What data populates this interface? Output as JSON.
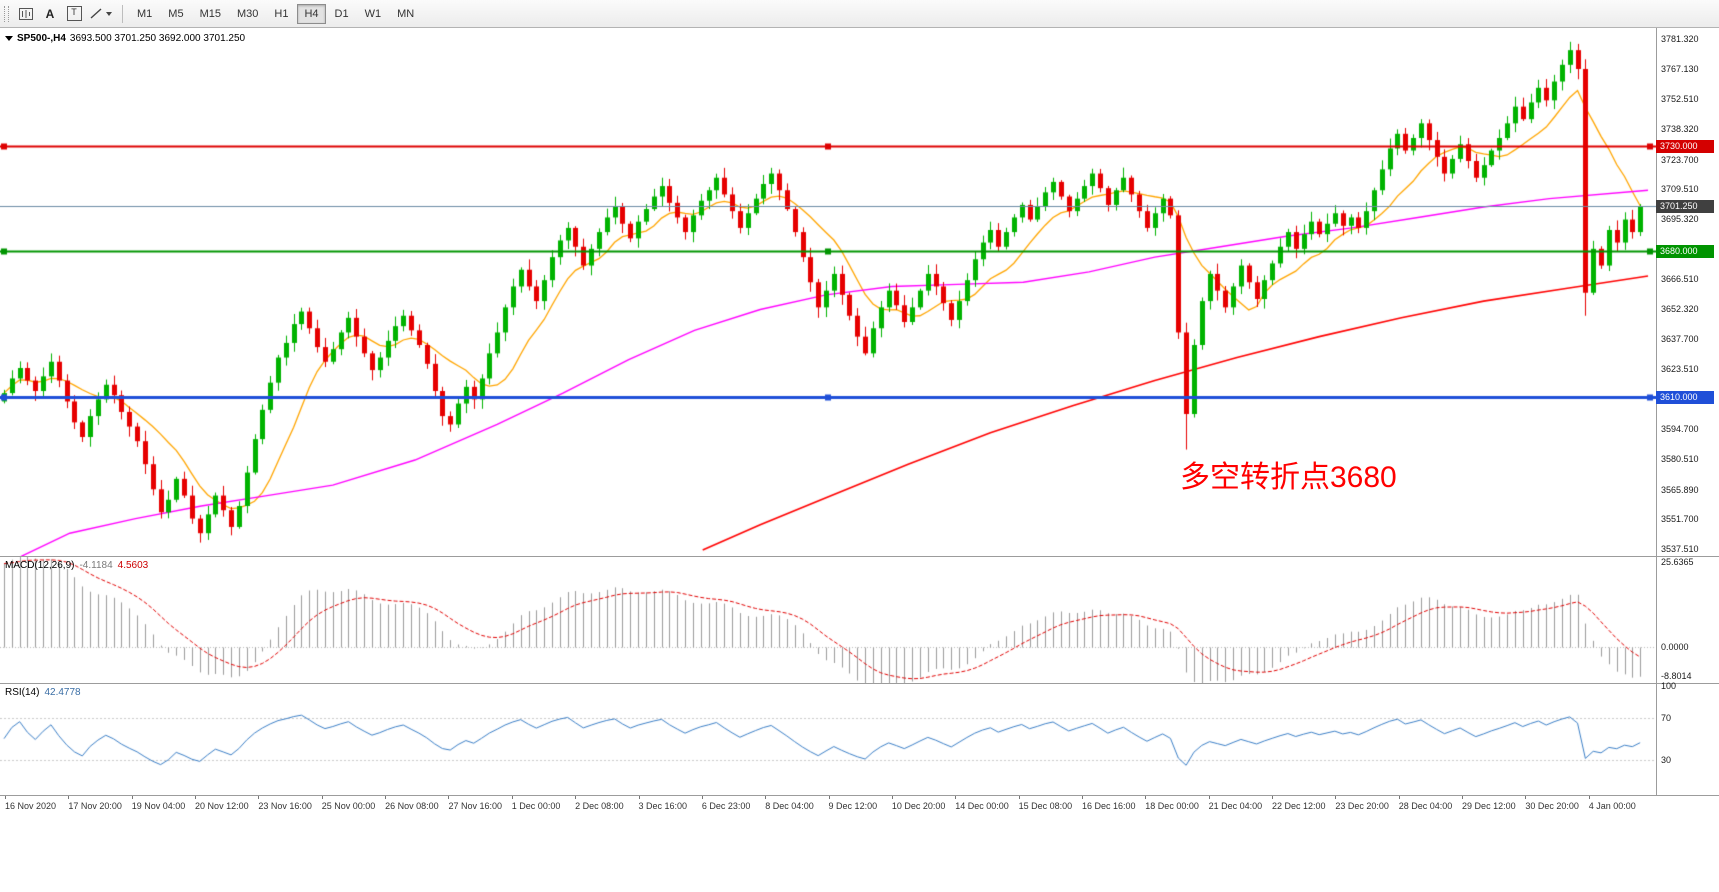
{
  "toolbar": {
    "text_tool": "A",
    "textbox_tool": "T",
    "timeframes": [
      {
        "label": "M1"
      },
      {
        "label": "M5"
      },
      {
        "label": "M15"
      },
      {
        "label": "M30"
      },
      {
        "label": "H1"
      },
      {
        "label": "H4"
      },
      {
        "label": "D1"
      },
      {
        "label": "W1"
      },
      {
        "label": "MN"
      }
    ],
    "active_timeframe": "H4"
  },
  "chart": {
    "symbol_title": "SP500-,H4",
    "ohlc_text": "3693.500 3701.250 3692.000 3701.250",
    "annotation": {
      "text": "多空转折点3680",
      "color": "#ff0000"
    },
    "price_axis": {
      "labels": [
        {
          "text": "3781.320",
          "value": 3781.32
        },
        {
          "text": "3767.130",
          "value": 3767.13
        },
        {
          "text": "3752.510",
          "value": 3752.51
        },
        {
          "text": "3738.320",
          "value": 3738.32
        },
        {
          "text": "3723.700",
          "value": 3723.7
        },
        {
          "text": "3709.510",
          "value": 3709.51
        },
        {
          "text": "3695.320",
          "value": 3695.32
        },
        {
          "text": "3666.510",
          "value": 3666.51
        },
        {
          "text": "3652.320",
          "value": 3652.32
        },
        {
          "text": "3637.700",
          "value": 3637.7
        },
        {
          "text": "3623.510",
          "value": 3623.51
        },
        {
          "text": "3594.700",
          "value": 3594.7
        },
        {
          "text": "3580.510",
          "value": 3580.51
        },
        {
          "text": "3565.890",
          "value": 3565.89
        },
        {
          "text": "3551.700",
          "value": 3551.7
        },
        {
          "text": "3537.510",
          "value": 3537.51
        }
      ],
      "badges": [
        {
          "text": "3730.000",
          "value": 3730.0,
          "bg": "#d40000"
        },
        {
          "text": "3701.250",
          "value": 3701.25,
          "bg": "#404040"
        },
        {
          "text": "3680.000",
          "value": 3680.0,
          "bg": "#009400"
        },
        {
          "text": "3610.000",
          "value": 3610.0,
          "bg": "#1f4fd8"
        }
      ]
    },
    "hlines": [
      {
        "price": 3730.0,
        "color": "#dd0000",
        "width": 2,
        "handles": true
      },
      {
        "price": 3680.0,
        "color": "#009400",
        "width": 2,
        "handles": true
      },
      {
        "price": 3610.0,
        "color": "#1f4fd8",
        "width": 3,
        "handles": true
      },
      {
        "price": 3701.25,
        "color": "#6b8ba4",
        "width": 1,
        "handles": false
      }
    ],
    "time_axis": [
      "16 Nov 2020",
      "17 Nov 20:00",
      "19 Nov 04:00",
      "20 Nov 12:00",
      "23 Nov 16:00",
      "25 Nov 00:00",
      "26 Nov 08:00",
      "27 Nov 16:00",
      "1 Dec 00:00",
      "2 Dec 08:00",
      "3 Dec 16:00",
      "6 Dec 23:00",
      "8 Dec 04:00",
      "9 Dec 12:00",
      "10 Dec 20:00",
      "14 Dec 00:00",
      "15 Dec 08:00",
      "16 Dec 16:00",
      "18 Dec 00:00",
      "21 Dec 04:00",
      "22 Dec 12:00",
      "23 Dec 20:00",
      "28 Dec 04:00",
      "29 Dec 12:00",
      "30 Dec 20:00",
      "4 Jan 00:00"
    ]
  },
  "chart_data": {
    "type": "candlestick",
    "title": "SP500- H4",
    "price_range": [
      3537.51,
      3781.32
    ],
    "open_first": 3608,
    "closes": [
      3612,
      3619,
      3624,
      3618,
      3613,
      3620,
      3627,
      3618,
      3608,
      3598,
      3591,
      3601,
      3609,
      3616,
      3611,
      3603,
      3596,
      3589,
      3578,
      3566,
      3555,
      3561,
      3571,
      3563,
      3552,
      3545,
      3554,
      3563,
      3556,
      3548,
      3558,
      3574,
      3590,
      3604,
      3617,
      3629,
      3636,
      3645,
      3651,
      3643,
      3634,
      3627,
      3633,
      3641,
      3648,
      3639,
      3631,
      3623,
      3629,
      3637,
      3644,
      3649,
      3642,
      3635,
      3626,
      3613,
      3601,
      3597,
      3607,
      3615,
      3609,
      3619,
      3631,
      3641,
      3653,
      3663,
      3671,
      3663,
      3656,
      3666,
      3677,
      3685,
      3691,
      3682,
      3673,
      3681,
      3689,
      3696,
      3701,
      3693,
      3686,
      3694,
      3700,
      3706,
      3711,
      3703,
      3696,
      3689,
      3697,
      3704,
      3709,
      3715,
      3707,
      3699,
      3691,
      3698,
      3705,
      3712,
      3717,
      3709,
      3700,
      3689,
      3677,
      3665,
      3653,
      3661,
      3669,
      3659,
      3649,
      3639,
      3631,
      3643,
      3653,
      3661,
      3654,
      3646,
      3653,
      3661,
      3669,
      3663,
      3655,
      3647,
      3656,
      3666,
      3676,
      3684,
      3690,
      3682,
      3689,
      3696,
      3702,
      3695,
      3701,
      3708,
      3713,
      3706,
      3699,
      3705,
      3711,
      3717,
      3710,
      3702,
      3709,
      3715,
      3707,
      3699,
      3691,
      3698,
      3705,
      3697,
      3641,
      3602,
      3635,
      3656,
      3669,
      3661,
      3653,
      3663,
      3673,
      3665,
      3657,
      3666,
      3674,
      3682,
      3689,
      3681,
      3688,
      3694,
      3688,
      3693,
      3698,
      3692,
      3696,
      3691,
      3699,
      3709,
      3719,
      3729,
      3736,
      3728,
      3734,
      3741,
      3733,
      3725,
      3717,
      3724,
      3731,
      3723,
      3715,
      3721,
      3728,
      3734,
      3741,
      3749,
      3743,
      3751,
      3758,
      3752,
      3761,
      3769,
      3776,
      3767,
      3660,
      3681,
      3673,
      3690,
      3684,
      3695,
      3689,
      3701.25
    ],
    "low_overrides": {
      "151": 3585,
      "202": 3649
    },
    "high_overrides": {
      "200": 3780,
      "201": 3779
    },
    "colors": {
      "up": "#00b300",
      "down": "#e60000",
      "ma_fast": "#ffa500",
      "ma_mid": "#ff00ff",
      "ma_slow": "#ff0000"
    },
    "ma_mid_anchors": [
      [
        0,
        3530
      ],
      [
        0.04,
        3545
      ],
      [
        0.08,
        3552
      ],
      [
        0.12,
        3558
      ],
      [
        0.16,
        3563
      ],
      [
        0.2,
        3568
      ],
      [
        0.25,
        3580
      ],
      [
        0.3,
        3597
      ],
      [
        0.34,
        3612
      ],
      [
        0.38,
        3628
      ],
      [
        0.42,
        3642
      ],
      [
        0.46,
        3652
      ],
      [
        0.5,
        3659
      ],
      [
        0.54,
        3663
      ],
      [
        0.58,
        3664
      ],
      [
        0.62,
        3665
      ],
      [
        0.66,
        3670
      ],
      [
        0.7,
        3677
      ],
      [
        0.74,
        3682
      ],
      [
        0.78,
        3687
      ],
      [
        0.82,
        3691
      ],
      [
        0.86,
        3696
      ],
      [
        0.9,
        3701
      ],
      [
        0.94,
        3705
      ],
      [
        1,
        3709
      ]
    ],
    "ma_slow_anchors": [
      [
        0.425,
        3537
      ],
      [
        0.46,
        3549
      ],
      [
        0.5,
        3562
      ],
      [
        0.55,
        3578
      ],
      [
        0.6,
        3593
      ],
      [
        0.65,
        3606
      ],
      [
        0.7,
        3618
      ],
      [
        0.75,
        3629
      ],
      [
        0.8,
        3639
      ],
      [
        0.85,
        3648
      ],
      [
        0.9,
        3656
      ],
      [
        0.95,
        3662
      ],
      [
        1,
        3668
      ]
    ]
  },
  "macd": {
    "label": "MACD(12,26,9)",
    "value_main": "-4.1184",
    "value_signal": "4.5603",
    "seed_fast": 3575,
    "seed_slow": 3551,
    "axis": [
      {
        "text": "25.6365",
        "value": 25.6365
      },
      {
        "text": "0.0000",
        "value": 0
      },
      {
        "text": "-8.8014",
        "value": -8.8014
      }
    ]
  },
  "rsi": {
    "label": "RSI(14)",
    "value": "42.4778",
    "period": 14,
    "levels": [
      70,
      30
    ],
    "axis": [
      {
        "text": "100",
        "value": 100
      },
      {
        "text": "70",
        "value": 70
      },
      {
        "text": "30",
        "value": 30
      }
    ]
  }
}
